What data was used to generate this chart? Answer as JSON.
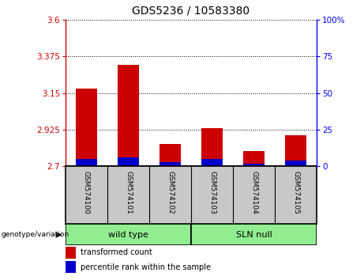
{
  "title": "GDS5236 / 10583380",
  "samples": [
    "GSM574100",
    "GSM574101",
    "GSM574102",
    "GSM574103",
    "GSM574104",
    "GSM574105"
  ],
  "transformed_counts": [
    3.175,
    3.32,
    2.835,
    2.935,
    2.795,
    2.89
  ],
  "percentile_ranks": [
    5,
    6,
    3,
    5,
    2,
    4
  ],
  "baseline": 2.7,
  "ylim_left": [
    2.7,
    3.6
  ],
  "ylim_right": [
    0,
    100
  ],
  "yticks_left": [
    2.7,
    2.925,
    3.15,
    3.375,
    3.6
  ],
  "yticks_right": [
    0,
    25,
    50,
    75,
    100
  ],
  "ytick_labels_left": [
    "2.7",
    "2.925",
    "3.15",
    "3.375",
    "3.6"
  ],
  "ytick_labels_right": [
    "0",
    "25",
    "50",
    "75",
    "100%"
  ],
  "bar_width": 0.5,
  "red_color": "#CC0000",
  "blue_color": "#0000CC",
  "bg_color": "#FFFFFF",
  "label_area_color": "#C8C8C8",
  "group_color": "#90EE90",
  "legend_red": "transformed count",
  "legend_blue": "percentile rank within the sample",
  "genotype_label": "genotype/variation",
  "figsize": [
    4.61,
    3.54
  ],
  "dpi": 100
}
